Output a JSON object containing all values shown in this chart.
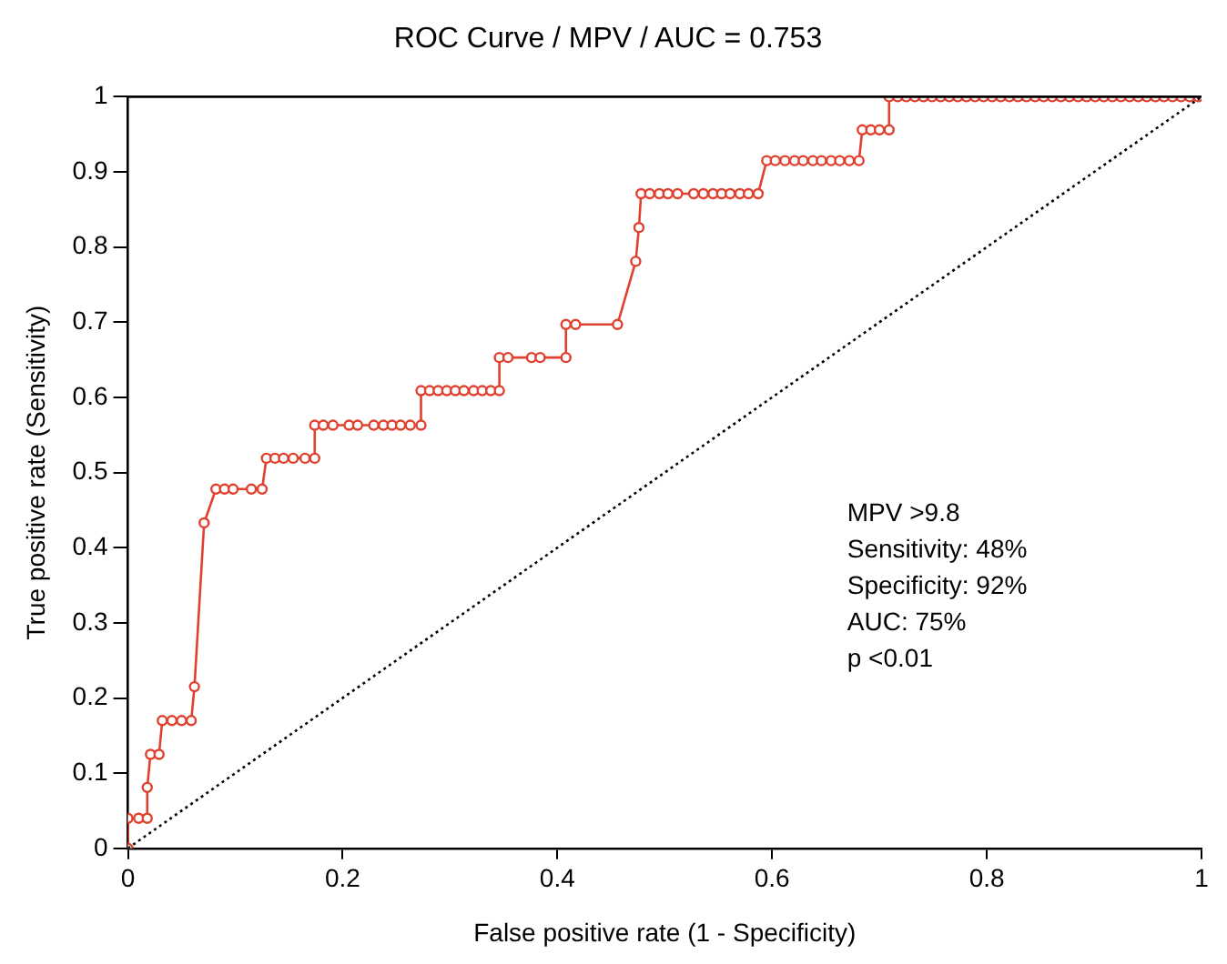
{
  "chart_data": {
    "type": "line",
    "title": "ROC Curve / MPV / AUC = 0.753",
    "xlabel": "False positive rate (1 - Specificity)",
    "ylabel": "True positive rate (Sensitivity)",
    "xlim": [
      0,
      1
    ],
    "ylim": [
      0,
      1
    ],
    "xticks": [
      0,
      0.2,
      0.4,
      0.6,
      0.8,
      1
    ],
    "yticks": [
      0,
      0.1,
      0.2,
      0.3,
      0.4,
      0.5,
      0.6,
      0.7,
      0.8,
      0.9,
      1
    ],
    "grid": false,
    "legend": false,
    "annotations": [
      "MPV >9.8",
      "Sensitivity: 48%",
      "Specificity: 92%",
      "AUC: 75%",
      "p <0.01"
    ],
    "series": [
      {
        "type": "line",
        "color": "#e0402e",
        "marker": "circle",
        "line_style": "solid",
        "x": [
          0,
          0,
          0.01,
          0.018,
          0.018,
          0.021,
          0.029,
          0.032,
          0.041,
          0.05,
          0.059,
          0.062,
          0.071,
          0.082,
          0.09,
          0.098,
          0.115,
          0.125,
          0.129,
          0.137,
          0.145,
          0.154,
          0.165,
          0.174,
          0.174,
          0.182,
          0.191,
          0.206,
          0.214,
          0.229,
          0.238,
          0.246,
          0.254,
          0.263,
          0.273,
          0.273,
          0.281,
          0.289,
          0.297,
          0.305,
          0.313,
          0.322,
          0.33,
          0.338,
          0.346,
          0.346,
          0.354,
          0.376,
          0.384,
          0.408,
          0.408,
          0.417,
          0.456,
          0.473,
          0.476,
          0.478,
          0.486,
          0.495,
          0.503,
          0.512,
          0.527,
          0.536,
          0.545,
          0.553,
          0.561,
          0.57,
          0.578,
          0.587,
          0.595,
          0.603,
          0.612,
          0.621,
          0.629,
          0.638,
          0.646,
          0.655,
          0.663,
          0.672,
          0.681,
          0.684,
          0.692,
          0.7,
          0.709,
          0.709,
          0.717,
          0.725,
          0.733,
          0.741,
          0.749,
          0.757,
          0.765,
          0.773,
          0.781,
          0.789,
          0.797,
          0.805,
          0.813,
          0.821,
          0.829,
          0.837,
          0.845,
          0.853,
          0.861,
          0.869,
          0.877,
          0.885,
          0.893,
          0.901,
          0.909,
          0.917,
          0.925,
          0.933,
          0.941,
          0.949,
          0.957,
          0.965,
          0.973,
          0.981,
          0.989,
          0.997
        ],
        "values": [
          0,
          0.04,
          0.04,
          0.04,
          0.081,
          0.125,
          0.125,
          0.17,
          0.17,
          0.17,
          0.17,
          0.215,
          0.433,
          0.478,
          0.478,
          0.478,
          0.478,
          0.478,
          0.519,
          0.519,
          0.519,
          0.519,
          0.519,
          0.519,
          0.563,
          0.563,
          0.563,
          0.563,
          0.563,
          0.563,
          0.563,
          0.563,
          0.563,
          0.563,
          0.563,
          0.609,
          0.609,
          0.609,
          0.609,
          0.609,
          0.609,
          0.609,
          0.609,
          0.609,
          0.609,
          0.653,
          0.653,
          0.653,
          0.653,
          0.653,
          0.697,
          0.697,
          0.697,
          0.781,
          0.826,
          0.871,
          0.871,
          0.871,
          0.871,
          0.871,
          0.871,
          0.871,
          0.871,
          0.871,
          0.871,
          0.871,
          0.871,
          0.871,
          0.915,
          0.915,
          0.915,
          0.915,
          0.915,
          0.915,
          0.915,
          0.915,
          0.915,
          0.915,
          0.915,
          0.956,
          0.956,
          0.956,
          0.956,
          1,
          1,
          1,
          1,
          1,
          1,
          1,
          1,
          1,
          1,
          1,
          1,
          1,
          1,
          1,
          1,
          1,
          1,
          1,
          1,
          1,
          1,
          1,
          1,
          1,
          1,
          1,
          1,
          1,
          1,
          1,
          1,
          1,
          1,
          1,
          1,
          1
        ]
      },
      {
        "type": "line",
        "color": "#000000",
        "marker": "none",
        "line_style": "dotted",
        "x": [
          0,
          1
        ],
        "values": [
          0,
          1
        ]
      }
    ]
  }
}
